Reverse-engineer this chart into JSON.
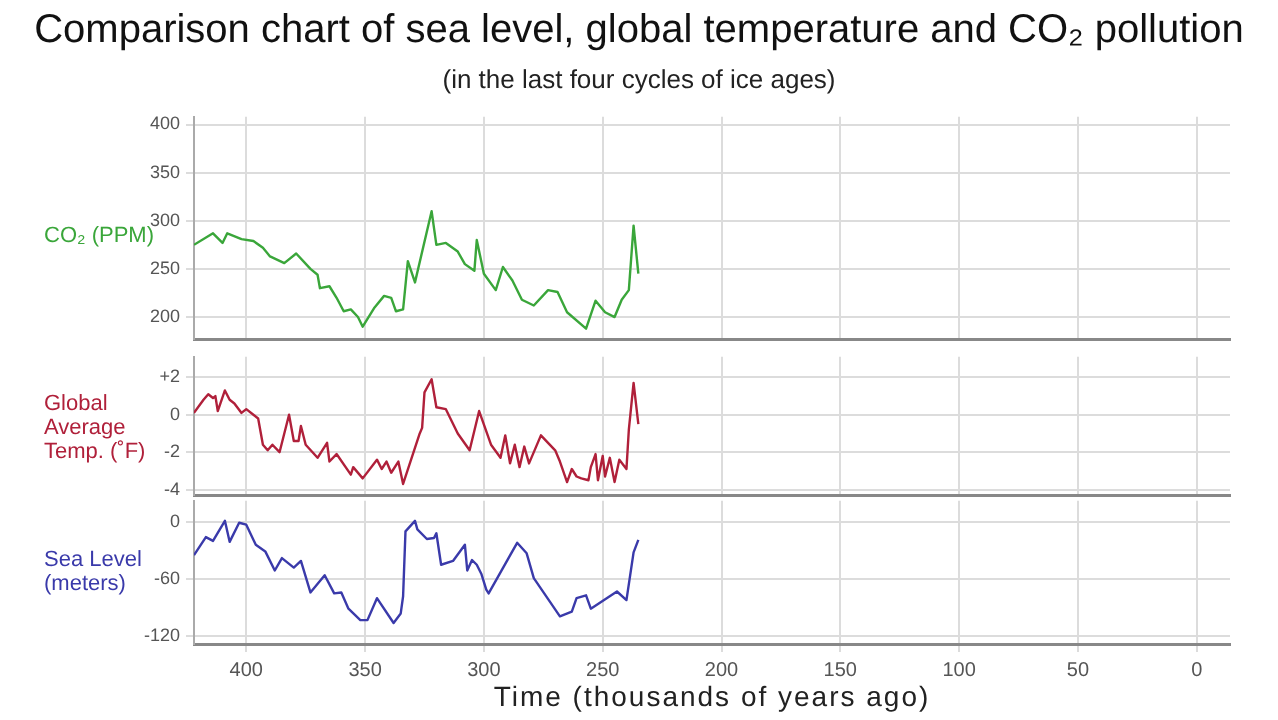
{
  "chart_data": [
    {
      "type": "line",
      "title": "Comparison chart of sea level, global temperature and CO₂ pollution",
      "subtitle": "(in the last four cycles of ice ages)",
      "ylabel": "CO₂ (PPM)",
      "color": "#3aa63a",
      "grid": true,
      "tick_labels": "y",
      "x": [
        422,
        414,
        410,
        408,
        402,
        397,
        393,
        390,
        384,
        379,
        373,
        370,
        369,
        365,
        362,
        359,
        356,
        353,
        351,
        346,
        342,
        339,
        337,
        334,
        332,
        329,
        322,
        320,
        316,
        311,
        308,
        304,
        303,
        300,
        295,
        292,
        288,
        284,
        279,
        273,
        269,
        265,
        257,
        253,
        249,
        245,
        242,
        239,
        237,
        235
      ],
      "values": [
        275,
        287,
        277,
        287,
        281,
        279,
        272,
        263,
        256,
        266,
        250,
        244,
        230,
        232,
        220,
        206,
        208,
        200,
        190,
        210,
        222,
        220,
        206,
        208,
        258,
        236,
        310,
        275,
        277,
        268,
        255,
        248,
        280,
        245,
        228,
        252,
        238,
        218,
        212,
        228,
        226,
        205,
        188,
        217,
        205,
        200,
        218,
        228,
        295,
        245
      ],
      "xlim": [
        422,
        -14
      ],
      "xticks": [
        400,
        350,
        300,
        250,
        200,
        150,
        100,
        50,
        0
      ],
      "ylim": [
        177,
        408
      ],
      "yticks": [
        200,
        250,
        300,
        350,
        400
      ]
    },
    {
      "type": "line",
      "ylabel": "Global Average Temp. (˚F)",
      "color": "#b0203a",
      "grid": true,
      "tick_labels": "y",
      "x": [
        422,
        418,
        416,
        414,
        413,
        412,
        409,
        407,
        405,
        402,
        400,
        397,
        395,
        393,
        391,
        389,
        386,
        382,
        380,
        378,
        377,
        375,
        370,
        366,
        365,
        362,
        356,
        355,
        351,
        345,
        343,
        341,
        339,
        336,
        334,
        327,
        326,
        325,
        322,
        320,
        316,
        311,
        306,
        302,
        297,
        293,
        291,
        289,
        287,
        285,
        283,
        281,
        276,
        270,
        268,
        265,
        263,
        261,
        259,
        256,
        255,
        253,
        252,
        250,
        249,
        247,
        245,
        243,
        240,
        239,
        237,
        235
      ],
      "values": [
        0.1,
        0.8,
        1.1,
        0.9,
        1.0,
        0.2,
        1.3,
        0.8,
        0.6,
        0.1,
        0.3,
        0,
        -0.2,
        -1.6,
        -1.9,
        -1.6,
        -2.0,
        0,
        -1.4,
        -1.4,
        -0.6,
        -1.6,
        -2.3,
        -1.5,
        -2.5,
        -2.1,
        -3.2,
        -2.8,
        -3.4,
        -2.4,
        -2.9,
        -2.5,
        -3.1,
        -2.5,
        -3.7,
        -1.0,
        -0.7,
        1.2,
        1.9,
        0.4,
        0.3,
        -1.0,
        -1.9,
        0.2,
        -1.6,
        -2.3,
        -1.1,
        -2.6,
        -1.6,
        -2.8,
        -1.7,
        -2.6,
        -1.1,
        -1.9,
        -2.5,
        -3.6,
        -2.9,
        -3.3,
        -3.4,
        -3.5,
        -2.8,
        -2.1,
        -3.5,
        -2.2,
        -3.3,
        -2.3,
        -3.6,
        -2.4,
        -2.9,
        -0.8,
        1.7,
        -0.5
      ],
      "xlim": [
        422,
        -14
      ],
      "xticks": [
        400,
        350,
        300,
        250,
        200,
        150,
        100,
        50,
        0
      ],
      "ylim": [
        -4.3,
        3.1
      ],
      "yticks": [
        {
          "value": 2,
          "label": "+2"
        },
        0,
        -2,
        -4
      ]
    },
    {
      "type": "line",
      "ylabel": "Sea Level (meters)",
      "xlabel": "Time (thousands of years ago)",
      "color": "#3a3aaa",
      "grid": true,
      "x": [
        422,
        417,
        414,
        409,
        407,
        403,
        400,
        396,
        392,
        388,
        385,
        380,
        377,
        373,
        367,
        363,
        360,
        357,
        352,
        349,
        345,
        338,
        335,
        334,
        333,
        329,
        328,
        324,
        321,
        320,
        318,
        313,
        308,
        307,
        305,
        303,
        301,
        299,
        298,
        286,
        282,
        279,
        268,
        263,
        261,
        257,
        255,
        244,
        240,
        237,
        235
      ],
      "values": [
        -35,
        -16,
        -20,
        1,
        -21,
        -1,
        -3,
        -24,
        -31,
        -51,
        -38,
        -48,
        -41,
        -74,
        -56,
        -75,
        -74,
        -91,
        -103,
        -103,
        -80,
        -106,
        -96,
        -78,
        -10,
        1,
        -8,
        -18,
        -17,
        -12,
        -45,
        -41,
        -24,
        -51,
        -40,
        -45,
        -55,
        -71,
        -75,
        -22,
        -33,
        -59,
        -99,
        -94,
        -80,
        -77,
        -91,
        -73,
        -82,
        -32,
        -19
      ],
      "xlim": [
        422,
        -14
      ],
      "xticks": [
        400,
        350,
        300,
        250,
        200,
        150,
        100,
        50,
        0
      ],
      "ylim": [
        -128,
        22
      ],
      "yticks": [
        0,
        -60,
        -120
      ]
    }
  ]
}
